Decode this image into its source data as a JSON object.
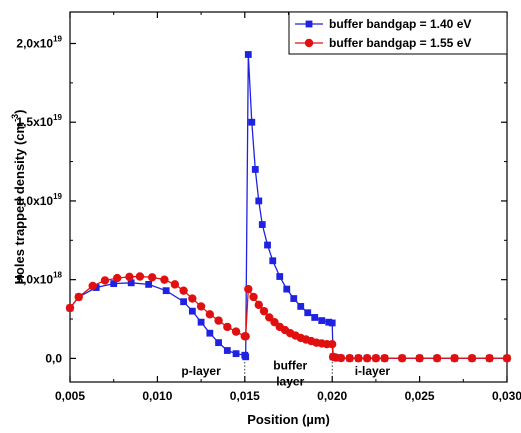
{
  "chart_data": {
    "type": "line",
    "xlabel": "Position (µm)",
    "ylabel": "Holes trapped density (cm",
    "ylabel_sup": "-3",
    "ylabel_tail": ")",
    "xlim": [
      0.005,
      0.03
    ],
    "ylim": [
      -1.5e+18,
      2.2e+19
    ],
    "x_ticks": [
      {
        "v": 0.005,
        "label": "0,005"
      },
      {
        "v": 0.01,
        "label": "0,010"
      },
      {
        "v": 0.015,
        "label": "0,015"
      },
      {
        "v": 0.02,
        "label": "0,020"
      },
      {
        "v": 0.025,
        "label": "0,025"
      },
      {
        "v": 0.03,
        "label": "0,030"
      }
    ],
    "y_ticks": [
      {
        "v": 0,
        "mant": "0,0",
        "exp": ""
      },
      {
        "v": 5e+18,
        "mant": "5,0x10",
        "exp": "18"
      },
      {
        "v": 1e+19,
        "mant": "1,0x10",
        "exp": "19"
      },
      {
        "v": 1.5e+19,
        "mant": "1,5x10",
        "exp": "19"
      },
      {
        "v": 2e+19,
        "mant": "2,0x10",
        "exp": "19"
      }
    ],
    "grid": false,
    "legend_position": "top-right",
    "series": [
      {
        "name": "buffer bandgap = 1.40 eV",
        "color": "#1f22e0",
        "marker": "square",
        "x": [
          0.005,
          0.0055,
          0.0065,
          0.0075,
          0.0085,
          0.0095,
          0.0105,
          0.0115,
          0.012,
          0.0125,
          0.013,
          0.0135,
          0.014,
          0.0145,
          0.015,
          0.01505,
          0.0152,
          0.0154,
          0.0156,
          0.0158,
          0.016,
          0.0163,
          0.0166,
          0.017,
          0.0174,
          0.0178,
          0.0182,
          0.0186,
          0.019,
          0.0194,
          0.0198,
          0.02,
          0.02005,
          0.0202,
          0.0205,
          0.021,
          0.0215,
          0.022,
          0.0225,
          0.023,
          0.024,
          0.025,
          0.026,
          0.027,
          0.028,
          0.029,
          0.03
        ],
        "y": [
          3.2e+18,
          3.9e+18,
          4.5e+18,
          4.75e+18,
          4.8e+18,
          4.7e+18,
          4.3e+18,
          3.6e+18,
          3e+18,
          2.3e+18,
          1.6e+18,
          1e+18,
          5e+17,
          3e+17,
          2e+17,
          1e+17,
          1.93e+19,
          1.5e+19,
          1.2e+19,
          1e+19,
          8.5e+18,
          7.2e+18,
          6.2e+18,
          5.2e+18,
          4.4e+18,
          3.8e+18,
          3.3e+18,
          2.9e+18,
          2.6e+18,
          2.4e+18,
          2.3e+18,
          2.25e+18,
          1e+17,
          5e+16,
          2e+16,
          1e+16,
          1e+16,
          1e+16,
          1e+16,
          1e+16,
          1e+16,
          1e+16,
          1e+16,
          1e+16,
          1e+16,
          1e+16,
          1e+16
        ]
      },
      {
        "name": "buffer bandgap = 1.55 eV",
        "color": "#e01010",
        "marker": "circle",
        "x": [
          0.005,
          0.0055,
          0.0063,
          0.007,
          0.0077,
          0.0084,
          0.009,
          0.0097,
          0.0104,
          0.011,
          0.0115,
          0.012,
          0.0125,
          0.013,
          0.0135,
          0.014,
          0.0145,
          0.015,
          0.01505,
          0.0152,
          0.0155,
          0.0158,
          0.0161,
          0.0164,
          0.0167,
          0.017,
          0.0173,
          0.0176,
          0.0179,
          0.0182,
          0.0185,
          0.0188,
          0.0191,
          0.0194,
          0.0197,
          0.02,
          0.02005,
          0.0202,
          0.0205,
          0.021,
          0.0215,
          0.022,
          0.0225,
          0.023,
          0.024,
          0.025,
          0.026,
          0.027,
          0.028,
          0.029,
          0.03
        ],
        "y": [
          3.2e+18,
          3.9e+18,
          4.6e+18,
          4.95e+18,
          5.1e+18,
          5.18e+18,
          5.2e+18,
          5.15e+18,
          5e+18,
          4.7e+18,
          4.3e+18,
          3.8e+18,
          3.3e+18,
          2.8e+18,
          2.4e+18,
          2e+18,
          1.7e+18,
          1.4e+18,
          1.4e+18,
          4.4e+18,
          3.9e+18,
          3.4e+18,
          3e+18,
          2.6e+18,
          2.3e+18,
          2e+18,
          1.8e+18,
          1.6e+18,
          1.45e+18,
          1.3e+18,
          1.2e+18,
          1.1e+18,
          1e+18,
          9.5e+17,
          9e+17,
          9e+17,
          1e+17,
          5e+16,
          2e+16,
          1e+16,
          1e+16,
          1e+16,
          1e+16,
          1e+16,
          1e+16,
          1e+16,
          1e+16,
          1e+16,
          1e+16,
          1e+16,
          1e+16
        ]
      }
    ],
    "region_labels": [
      {
        "x": 0.0125,
        "y": -1.6e+17,
        "lines": [
          "p-layer"
        ]
      },
      {
        "x": 0.0176,
        "y": 1.9e+17,
        "lines": [
          "buffer",
          "layer"
        ]
      },
      {
        "x": 0.0223,
        "y": -1.6e+17,
        "lines": [
          "i-layer"
        ]
      }
    ],
    "boundaries": [
      0.015,
      0.02
    ]
  }
}
